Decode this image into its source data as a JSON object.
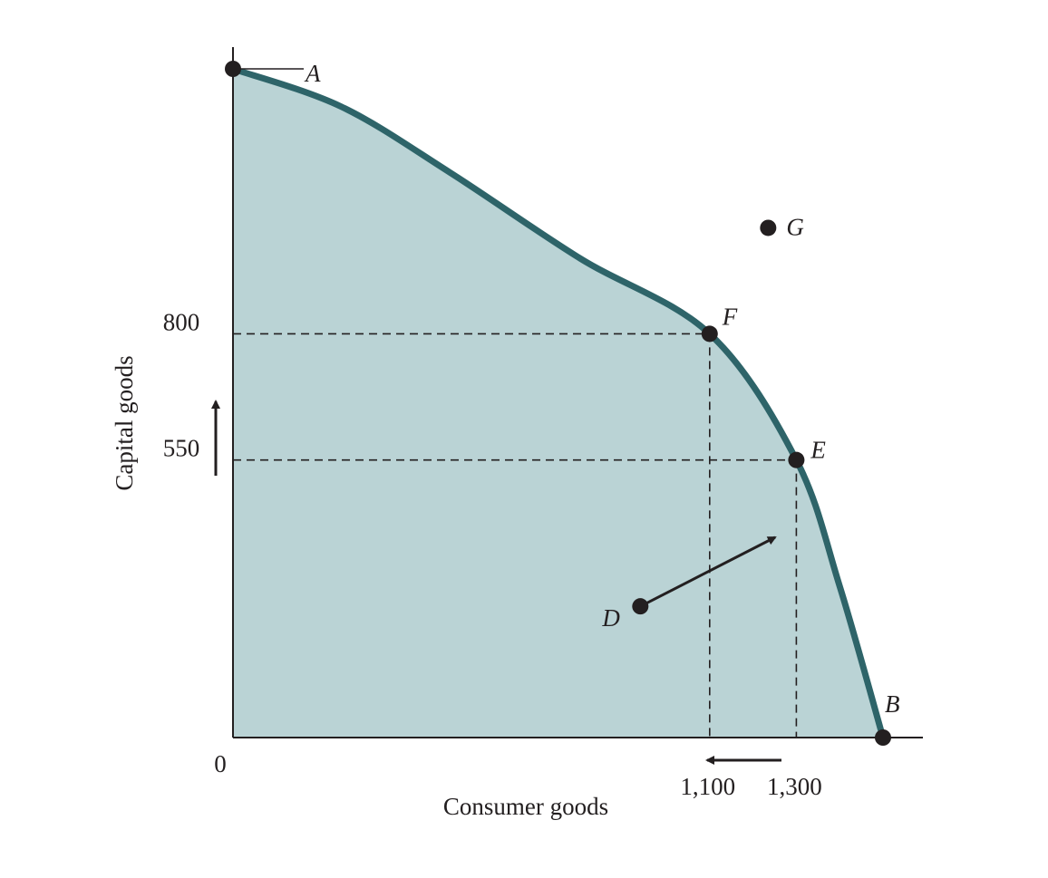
{
  "chart_data": {
    "type": "line",
    "title": "",
    "xlabel": "Consumer goods",
    "ylabel": "Capital goods",
    "origin_label": "0",
    "x_ticks": [
      {
        "value": 1100,
        "label": "1,100"
      },
      {
        "value": 1300,
        "label": "1,300"
      }
    ],
    "y_ticks": [
      {
        "value": 800,
        "label": "800"
      },
      {
        "value": 550,
        "label": "550"
      }
    ],
    "xlim": [
      0,
      1500
    ],
    "ylim": [
      0,
      1325
    ],
    "grid": false,
    "legend": "none",
    "colors": {
      "frontier": "#2e6469",
      "fill": "#bad3d5",
      "ink": "#231f20"
    },
    "frontier": [
      {
        "x": 0,
        "y": 1325
      },
      {
        "x": 250,
        "y": 1250
      },
      {
        "x": 500,
        "y": 1120
      },
      {
        "x": 800,
        "y": 950
      },
      {
        "x": 1100,
        "y": 800
      },
      {
        "x": 1300,
        "y": 550
      },
      {
        "x": 1400,
        "y": 300
      },
      {
        "x": 1500,
        "y": 0
      }
    ],
    "points": [
      {
        "name": "A",
        "label": "A",
        "x": 0,
        "y": 1325,
        "on_frontier": true
      },
      {
        "name": "B",
        "label": "B",
        "x": 1500,
        "y": 0,
        "on_frontier": true
      },
      {
        "name": "D",
        "label": "D",
        "x": 940,
        "y": 260,
        "on_frontier": false
      },
      {
        "name": "E",
        "label": "E",
        "x": 1300,
        "y": 550,
        "on_frontier": true
      },
      {
        "name": "F",
        "label": "F",
        "x": 1100,
        "y": 800,
        "on_frontier": true
      },
      {
        "name": "G",
        "label": "G",
        "x": 1235,
        "y": 1010,
        "on_frontier": false
      }
    ],
    "annotations": [
      {
        "type": "arrow",
        "from": "D",
        "to": "E",
        "description": "movement from D toward E"
      },
      {
        "type": "arrow",
        "axis": "x",
        "direction": "left",
        "description": "consumer goods decrease from 1,300 to 1,100"
      },
      {
        "type": "arrow",
        "axis": "y",
        "direction": "up",
        "description": "capital goods increase from 550 to 800"
      }
    ]
  }
}
